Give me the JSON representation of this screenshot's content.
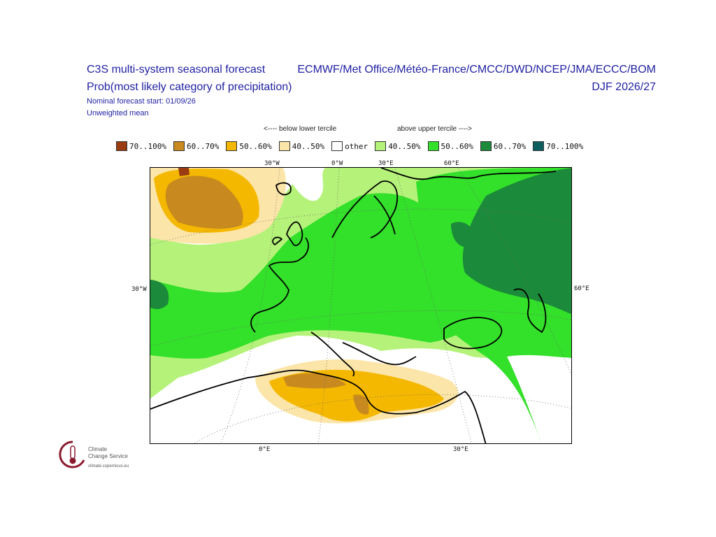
{
  "header": {
    "title_line1": "C3S multi-system seasonal forecast",
    "title_line2": "Prob(most likely category of precipitation)",
    "forecast_start": "Nominal forecast start: 01/09/26",
    "weighting": "Unweighted mean",
    "centres": "ECMWF/Met Office/Météo-France/CMCC/DWD/NCEP/JMA/ECCC/BOM",
    "period": "DJF 2026/27"
  },
  "legend": {
    "below_label": "<---- below lower tercile",
    "above_label": "above upper tercile ---->",
    "items": [
      {
        "label": "70..100%",
        "color": "#9a3b12"
      },
      {
        "label": "60..70%",
        "color": "#c88a1e"
      },
      {
        "label": "50..60%",
        "color": "#f5b800"
      },
      {
        "label": "40..50%",
        "color": "#fce5a8"
      },
      {
        "label": "other",
        "color": "#ffffff"
      },
      {
        "label": "40..50%",
        "color": "#b5f27a"
      },
      {
        "label": "50..60%",
        "color": "#33e02a"
      },
      {
        "label": "60..70%",
        "color": "#1b8a3a"
      },
      {
        "label": "70..100%",
        "color": "#0d5f5f"
      }
    ]
  },
  "map_labels": {
    "top": [
      "30°W",
      "0°W",
      "30°E",
      "60°E"
    ],
    "bottom": [
      "0°E",
      "30°E"
    ],
    "left": "30°W",
    "right": "60°E"
  },
  "logo": {
    "name_line1": "Climate",
    "name_line2": "Change Service",
    "url": "climate.copernicus.eu"
  }
}
